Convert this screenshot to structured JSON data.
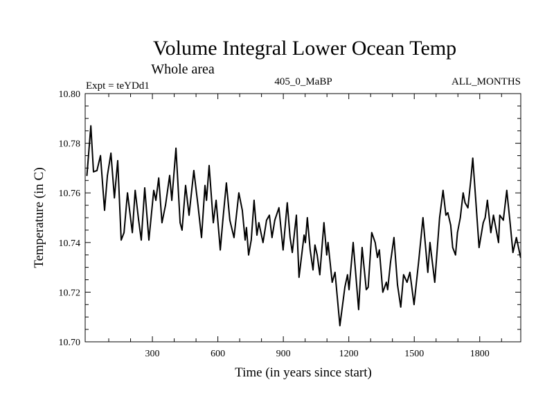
{
  "chart_data": {
    "type": "line",
    "title": "Volume Integral Lower Ocean Temp",
    "subtitle": "Whole area",
    "header_left": "Expt = teYDd1",
    "header_center": "405_0_MaBP",
    "header_right": "ALL_MONTHS",
    "xlabel": "Time (in years since start)",
    "ylabel": "Temperature (in C)",
    "xlim": [
      -8,
      1988
    ],
    "ylim": [
      10.7,
      10.8
    ],
    "xticks": [
      300,
      600,
      900,
      1200,
      1500,
      1800
    ],
    "xtick_labels": [
      "300",
      "600",
      "900",
      "1200",
      "1500",
      "1800"
    ],
    "x_minor_step": 100,
    "yticks": [
      10.7,
      10.72,
      10.74,
      10.76,
      10.78,
      10.8
    ],
    "ytick_labels": [
      "10.70",
      "10.72",
      "10.74",
      "10.76",
      "10.78",
      "10.80"
    ],
    "y_minor_step": 0.005,
    "grid": false,
    "legend": "none",
    "series": [
      {
        "name": "teYDd1",
        "color": "#000000",
        "x": [
          0,
          18,
          30,
          46,
          62,
          81,
          94,
          110,
          126,
          141,
          157,
          170,
          186,
          208,
          221,
          237,
          249,
          265,
          284,
          306,
          316,
          329,
          344,
          360,
          379,
          389,
          408,
          427,
          436,
          452,
          468,
          490,
          509,
          525,
          541,
          548,
          560,
          579,
          592,
          611,
          623,
          639,
          655,
          674,
          696,
          712,
          725,
          731,
          741,
          753,
          766,
          779,
          788,
          807,
          823,
          836,
          848,
          861,
          880,
          899,
          918,
          931,
          941,
          960,
          972,
          995,
          1001,
          1010,
          1023,
          1036,
          1045,
          1055,
          1067,
          1086,
          1099,
          1105,
          1124,
          1137,
          1159,
          1182,
          1194,
          1201,
          1220,
          1245,
          1261,
          1280,
          1289,
          1305,
          1321,
          1331,
          1340,
          1356,
          1372,
          1378,
          1391,
          1407,
          1423,
          1438,
          1451,
          1467,
          1480,
          1499,
          1521,
          1540,
          1562,
          1572,
          1594,
          1616,
          1632,
          1645,
          1654,
          1667,
          1676,
          1689,
          1698,
          1711,
          1724,
          1733,
          1746,
          1759,
          1768,
          1781,
          1797,
          1816,
          1825,
          1835,
          1851,
          1863,
          1886,
          1892,
          1908,
          1924,
          1939,
          1952,
          1968,
          1987
        ],
        "values": [
          10.767,
          10.787,
          10.7685,
          10.769,
          10.775,
          10.753,
          10.767,
          10.776,
          10.758,
          10.773,
          10.741,
          10.744,
          10.76,
          10.744,
          10.761,
          10.749,
          10.741,
          10.762,
          10.741,
          10.761,
          10.757,
          10.766,
          10.748,
          10.755,
          10.767,
          10.757,
          10.778,
          10.748,
          10.745,
          10.763,
          10.751,
          10.769,
          10.755,
          10.742,
          10.763,
          10.757,
          10.771,
          10.748,
          10.757,
          10.737,
          10.749,
          10.764,
          10.749,
          10.742,
          10.76,
          10.753,
          10.741,
          10.746,
          10.735,
          10.741,
          10.757,
          10.743,
          10.748,
          10.74,
          10.749,
          10.751,
          10.742,
          10.749,
          10.754,
          10.737,
          10.756,
          10.742,
          10.736,
          10.751,
          10.726,
          10.743,
          10.74,
          10.75,
          10.737,
          10.729,
          10.739,
          10.735,
          10.727,
          10.748,
          10.735,
          10.74,
          10.724,
          10.728,
          10.7065,
          10.722,
          10.727,
          10.721,
          10.74,
          10.713,
          10.738,
          10.721,
          10.722,
          10.744,
          10.74,
          10.734,
          10.737,
          10.72,
          10.724,
          10.721,
          10.732,
          10.742,
          10.723,
          10.714,
          10.727,
          10.724,
          10.728,
          10.715,
          10.733,
          10.75,
          10.728,
          10.74,
          10.724,
          10.75,
          10.761,
          10.751,
          10.752,
          10.747,
          10.738,
          10.735,
          10.744,
          10.75,
          10.76,
          10.756,
          10.754,
          10.765,
          10.774,
          10.758,
          10.738,
          10.748,
          10.75,
          10.757,
          10.744,
          10.751,
          10.74,
          10.751,
          10.749,
          10.761,
          10.748,
          10.736,
          10.742,
          10.734
        ]
      }
    ]
  }
}
